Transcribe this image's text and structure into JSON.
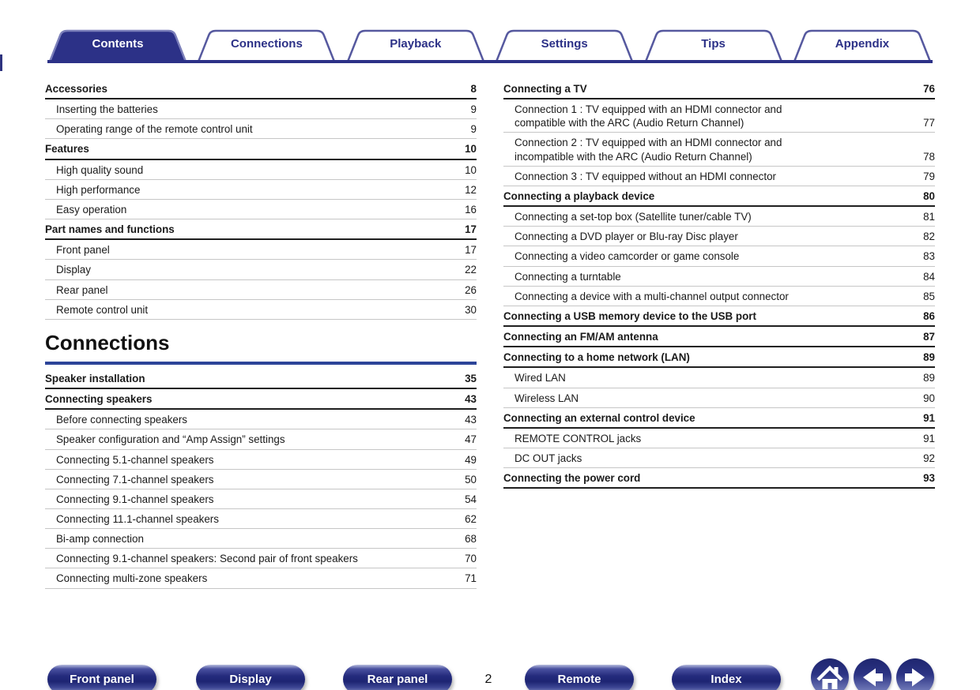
{
  "tabs": [
    {
      "label": "Contents",
      "active": true
    },
    {
      "label": "Connections",
      "active": false
    },
    {
      "label": "Playback",
      "active": false
    },
    {
      "label": "Settings",
      "active": false
    },
    {
      "label": "Tips",
      "active": false
    },
    {
      "label": "Appendix",
      "active": false
    }
  ],
  "toc": {
    "left": [
      {
        "type": "entry",
        "level": "chapter",
        "label": "Accessories",
        "page": "8"
      },
      {
        "type": "entry",
        "level": "sub",
        "label": "Inserting the batteries",
        "page": "9"
      },
      {
        "type": "entry",
        "level": "sub",
        "label": "Operating range of the remote control unit",
        "page": "9"
      },
      {
        "type": "entry",
        "level": "chapter",
        "label": "Features",
        "page": "10"
      },
      {
        "type": "entry",
        "level": "sub",
        "label": "High quality sound",
        "page": "10"
      },
      {
        "type": "entry",
        "level": "sub",
        "label": "High performance",
        "page": "12"
      },
      {
        "type": "entry",
        "level": "sub",
        "label": "Easy operation",
        "page": "16"
      },
      {
        "type": "entry",
        "level": "chapter",
        "label": "Part names and functions",
        "page": "17"
      },
      {
        "type": "entry",
        "level": "sub",
        "label": "Front panel",
        "page": "17"
      },
      {
        "type": "entry",
        "level": "sub",
        "label": "Display",
        "page": "22"
      },
      {
        "type": "entry",
        "level": "sub",
        "label": "Rear panel",
        "page": "26"
      },
      {
        "type": "entry",
        "level": "sub",
        "label": "Remote control unit",
        "page": "30"
      },
      {
        "type": "heading",
        "label": "Connections"
      },
      {
        "type": "entry",
        "level": "chapter",
        "label": "Speaker installation",
        "page": "35"
      },
      {
        "type": "entry",
        "level": "chapter",
        "label": "Connecting speakers",
        "page": "43"
      },
      {
        "type": "entry",
        "level": "sub",
        "label": "Before connecting speakers",
        "page": "43"
      },
      {
        "type": "entry",
        "level": "sub",
        "label": "Speaker configuration and “Amp Assign” settings",
        "page": "47"
      },
      {
        "type": "entry",
        "level": "sub",
        "label": "Connecting 5.1-channel speakers",
        "page": "49"
      },
      {
        "type": "entry",
        "level": "sub",
        "label": "Connecting 7.1-channel speakers",
        "page": "50"
      },
      {
        "type": "entry",
        "level": "sub",
        "label": "Connecting 9.1-channel speakers",
        "page": "54"
      },
      {
        "type": "entry",
        "level": "sub",
        "label": "Connecting 11.1-channel speakers",
        "page": "62"
      },
      {
        "type": "entry",
        "level": "sub",
        "label": "Bi-amp connection",
        "page": "68"
      },
      {
        "type": "entry",
        "level": "sub",
        "label": "Connecting 9.1-channel speakers: Second pair of front speakers",
        "page": "70"
      },
      {
        "type": "entry",
        "level": "sub",
        "label": "Connecting multi-zone speakers",
        "page": "71"
      }
    ],
    "right": [
      {
        "type": "entry",
        "level": "chapter",
        "label": "Connecting a TV",
        "page": "76"
      },
      {
        "type": "entry",
        "level": "sub",
        "label": "Connection 1 : TV equipped with an HDMI connector and\ncompatible with the ARC (Audio Return Channel)",
        "page": "77"
      },
      {
        "type": "entry",
        "level": "sub",
        "label": "Connection 2 : TV equipped with an HDMI connector and\nincompatible with the ARC (Audio Return Channel)",
        "page": "78"
      },
      {
        "type": "entry",
        "level": "sub",
        "label": "Connection 3 : TV equipped without an HDMI connector",
        "page": "79"
      },
      {
        "type": "entry",
        "level": "chapter",
        "label": "Connecting a playback device",
        "page": "80"
      },
      {
        "type": "entry",
        "level": "sub",
        "label": "Connecting a set-top box (Satellite tuner/cable TV)",
        "page": "81"
      },
      {
        "type": "entry",
        "level": "sub",
        "label": "Connecting a DVD player or Blu-ray Disc player",
        "page": "82"
      },
      {
        "type": "entry",
        "level": "sub",
        "label": "Connecting a video camcorder or game console",
        "page": "83"
      },
      {
        "type": "entry",
        "level": "sub",
        "label": "Connecting a turntable",
        "page": "84"
      },
      {
        "type": "entry",
        "level": "sub",
        "label": "Connecting a device with a multi-channel output connector",
        "page": "85"
      },
      {
        "type": "entry",
        "level": "chapter",
        "label": "Connecting a USB memory device to the USB port",
        "page": "86"
      },
      {
        "type": "entry",
        "level": "chapter",
        "label": "Connecting an FM/AM antenna",
        "page": "87"
      },
      {
        "type": "entry",
        "level": "chapter",
        "label": "Connecting to a home network (LAN)",
        "page": "89"
      },
      {
        "type": "entry",
        "level": "sub",
        "label": "Wired LAN",
        "page": "89"
      },
      {
        "type": "entry",
        "level": "sub",
        "label": "Wireless LAN",
        "page": "90"
      },
      {
        "type": "entry",
        "level": "chapter",
        "label": "Connecting an external control device",
        "page": "91"
      },
      {
        "type": "entry",
        "level": "sub",
        "label": "REMOTE CONTROL jacks",
        "page": "91"
      },
      {
        "type": "entry",
        "level": "sub",
        "label": "DC OUT jacks",
        "page": "92"
      },
      {
        "type": "entry",
        "level": "chapter",
        "label": "Connecting the power cord",
        "page": "93"
      }
    ]
  },
  "footer": {
    "page_number": "2",
    "buttons": [
      "Front panel",
      "Display",
      "Rear panel",
      "Remote",
      "Index"
    ],
    "nav_icons": [
      "home-icon",
      "arrow-left-icon",
      "arrow-right-icon"
    ]
  },
  "colors": {
    "navy": "#2c3187",
    "tabBorder": "#56599f",
    "tabActiveBorder": "#7b7fba",
    "headingRule": "#2c4499",
    "chapterRule": "#1f1f1f",
    "subRule": "#c6c6c6",
    "text": "#1a1a1a",
    "paper": "#ffffff"
  }
}
